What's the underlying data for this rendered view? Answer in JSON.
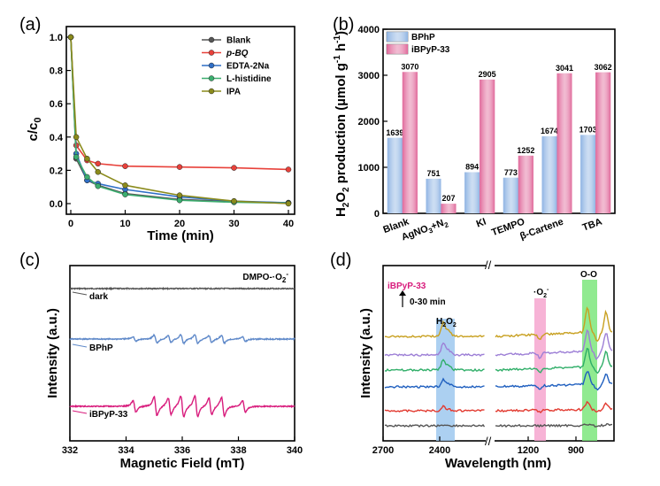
{
  "chart_data": [
    {
      "panel": "(a)",
      "type": "line",
      "xlabel": "Time (min)",
      "ylabel": "c/c0",
      "xlim": [
        0,
        40
      ],
      "ylim": [
        0,
        1.0
      ],
      "xticks": [
        "0",
        "10",
        "20",
        "30",
        "40"
      ],
      "yticks": [
        "0.0",
        "0.2",
        "0.4",
        "0.6",
        "0.8",
        "1.0"
      ],
      "x": [
        0,
        1,
        3,
        5,
        10,
        20,
        30,
        40
      ],
      "legend_position": "top-right",
      "series": [
        {
          "name": "Blank",
          "color": "#555555",
          "values": [
            1.0,
            0.27,
            0.14,
            0.11,
            0.06,
            0.025,
            0.012,
            0.005
          ]
        },
        {
          "name": "p-BQ",
          "color": "#e8413a",
          "values": [
            1.0,
            0.35,
            0.26,
            0.24,
            0.225,
            0.22,
            0.215,
            0.205
          ]
        },
        {
          "name": "EDTA-2Na",
          "color": "#2f6fc6",
          "values": [
            1.0,
            0.3,
            0.14,
            0.12,
            0.085,
            0.04,
            0.015,
            0.005
          ]
        },
        {
          "name": "L-histidine",
          "color": "#3cae6f",
          "values": [
            1.0,
            0.28,
            0.16,
            0.105,
            0.055,
            0.02,
            0.008,
            0.003
          ]
        },
        {
          "name": "IPA",
          "color": "#8b8b1c",
          "values": [
            1.0,
            0.4,
            0.27,
            0.19,
            0.11,
            0.05,
            0.015,
            0.0
          ]
        }
      ]
    },
    {
      "panel": "(b)",
      "type": "bar",
      "ylabel": "H2O2 production (µmol g-1 h-1)",
      "ylim": [
        0,
        4000
      ],
      "yticks": [
        "0",
        "1000",
        "2000",
        "3000",
        "4000"
      ],
      "categories": [
        "Blank",
        "AgNO3+N2",
        "KI",
        "TEMPO",
        "β-Cartene",
        "TBA"
      ],
      "legend_position": "top-left",
      "series": [
        {
          "name": "BPhP",
          "color": "#8fb4e3",
          "values": [
            1639,
            751,
            894,
            773,
            1674,
            1703
          ]
        },
        {
          "name": "iBPyP-33",
          "color": "#e0689a",
          "values": [
            3070,
            207,
            2905,
            1252,
            3041,
            3062
          ]
        }
      ]
    },
    {
      "panel": "(c)",
      "type": "line",
      "xlabel": "Magnetic Field (mT)",
      "ylabel": "Intensity (a.u.)",
      "xlim": [
        332,
        340
      ],
      "xticks": [
        "332",
        "334",
        "336",
        "338",
        "340"
      ],
      "title": "DMPO-·O2-",
      "series": [
        {
          "name": "dark",
          "color": "#555555"
        },
        {
          "name": "BPhP",
          "color": "#5f89c9"
        },
        {
          "name": "iBPyP-33",
          "color": "#d81b7c"
        }
      ]
    },
    {
      "panel": "(d)",
      "type": "line",
      "xlabel": "Wavelength (nm)",
      "ylabel": "Intensity (a.u.)",
      "xticks": [
        "2700",
        "2400",
        "1200",
        "900"
      ],
      "sample": "iBPyP-33",
      "time_note": "0-30 min",
      "bands": [
        {
          "label": "H2O2",
          "color": "#9ec8ee"
        },
        {
          "label": "·O2-",
          "color": "#f6a6cf"
        },
        {
          "label": "O-O",
          "color": "#7de67d"
        }
      ],
      "trace_colors": [
        "#555555",
        "#e23a30",
        "#1f5fbf",
        "#2fae68",
        "#9d7fd6",
        "#c8a020"
      ]
    }
  ]
}
